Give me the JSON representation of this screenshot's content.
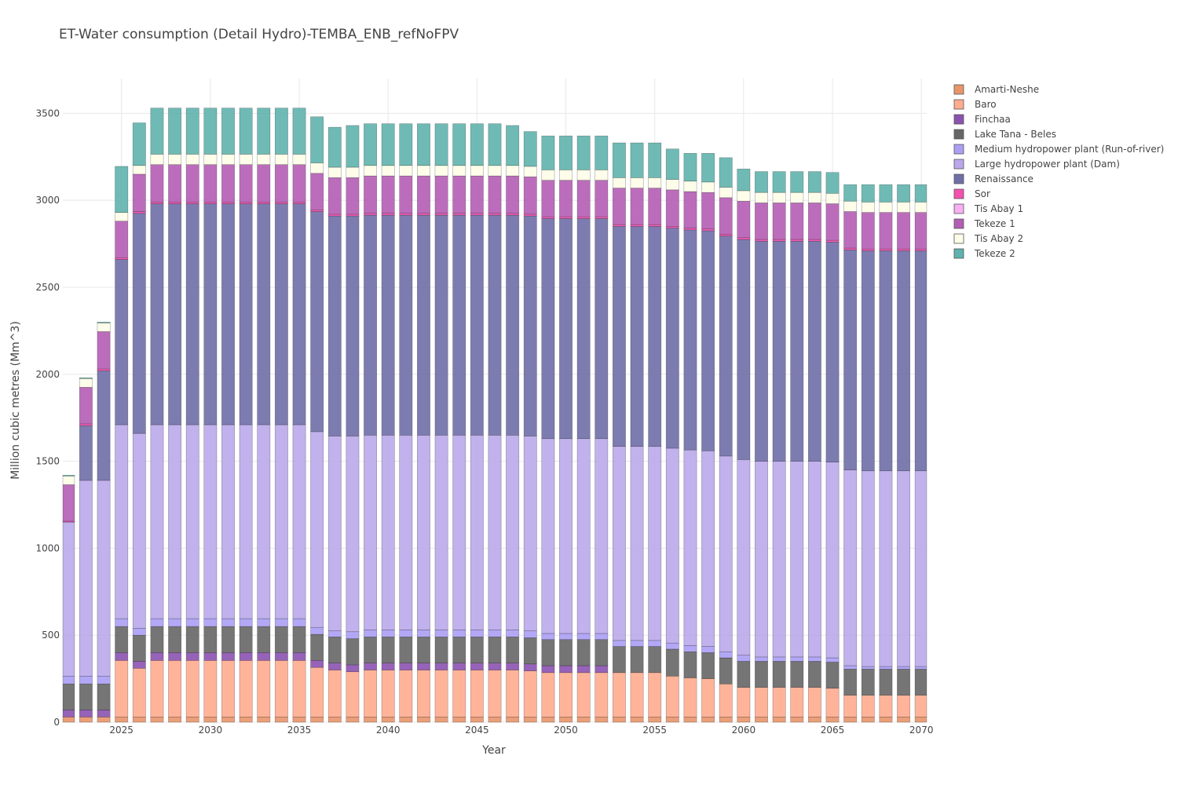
{
  "chart_data": {
    "type": "bar",
    "barmode": "stack",
    "title": "ET-Water consumption (Detail Hydro)-TEMBA_ENB_refNoFPV",
    "xlabel": "Year",
    "ylabel": "Million cubic metres (Mm^3)",
    "xlim": [
      2021.7,
      2070.3
    ],
    "ylim": [
      0,
      3700
    ],
    "x_ticks": [
      2025,
      2030,
      2035,
      2040,
      2045,
      2050,
      2055,
      2060,
      2065,
      2070
    ],
    "y_ticks": [
      0,
      500,
      1000,
      1500,
      2000,
      2500,
      3000,
      3500
    ],
    "grid": true,
    "legend_position": "right",
    "x": [
      2022,
      2023,
      2024,
      2025,
      2026,
      2027,
      2028,
      2029,
      2030,
      2031,
      2032,
      2033,
      2034,
      2035,
      2036,
      2037,
      2038,
      2039,
      2040,
      2041,
      2042,
      2043,
      2044,
      2045,
      2046,
      2047,
      2048,
      2049,
      2050,
      2051,
      2052,
      2053,
      2054,
      2055,
      2056,
      2057,
      2058,
      2059,
      2060,
      2061,
      2062,
      2063,
      2064,
      2065,
      2066,
      2067,
      2068,
      2069,
      2070
    ],
    "series": [
      {
        "name": "Amarti-Neshe",
        "color": "#e8956a",
        "values": [
          30,
          30,
          30,
          30,
          30,
          30,
          30,
          30,
          30,
          30,
          30,
          30,
          30,
          30,
          30,
          30,
          30,
          30,
          30,
          30,
          30,
          30,
          30,
          30,
          30,
          30,
          30,
          30,
          30,
          30,
          30,
          30,
          30,
          30,
          30,
          30,
          30,
          30,
          30,
          30,
          30,
          30,
          30,
          30,
          30,
          30,
          30,
          30,
          30
        ]
      },
      {
        "name": "Baro",
        "color": "#ffac8f",
        "values": [
          0,
          0,
          0,
          325,
          280,
          325,
          325,
          325,
          325,
          325,
          325,
          325,
          325,
          325,
          285,
          270,
          260,
          270,
          270,
          270,
          270,
          270,
          270,
          270,
          270,
          270,
          265,
          255,
          255,
          255,
          255,
          255,
          255,
          255,
          235,
          225,
          220,
          190,
          170,
          170,
          170,
          170,
          170,
          165,
          125,
          125,
          125,
          125,
          125
        ]
      },
      {
        "name": "Finchaa",
        "color": "#8b52b0",
        "values": [
          40,
          40,
          40,
          45,
          40,
          45,
          45,
          45,
          45,
          45,
          45,
          45,
          45,
          45,
          40,
          40,
          40,
          40,
          40,
          40,
          40,
          40,
          40,
          40,
          40,
          40,
          40,
          40,
          40,
          40,
          40,
          0,
          0,
          0,
          0,
          0,
          0,
          0,
          0,
          0,
          0,
          0,
          0,
          0,
          0,
          0,
          0,
          0,
          0
        ]
      },
      {
        "name": "Lake Tana - Beles",
        "color": "#666666",
        "values": [
          150,
          150,
          150,
          150,
          150,
          150,
          150,
          150,
          150,
          150,
          150,
          150,
          150,
          150,
          150,
          150,
          150,
          150,
          150,
          150,
          150,
          150,
          150,
          150,
          150,
          150,
          150,
          150,
          150,
          150,
          150,
          150,
          150,
          150,
          155,
          150,
          150,
          150,
          150,
          150,
          150,
          150,
          150,
          150,
          150,
          150,
          150,
          150,
          150
        ]
      },
      {
        "name": "Medium hydropower plant (Run-of-river)",
        "color": "#ab9ff5",
        "values": [
          45,
          45,
          45,
          45,
          40,
          45,
          45,
          45,
          45,
          45,
          45,
          45,
          45,
          45,
          40,
          35,
          40,
          40,
          40,
          40,
          40,
          40,
          40,
          40,
          40,
          40,
          40,
          35,
          35,
          35,
          35,
          35,
          35,
          35,
          35,
          35,
          35,
          35,
          35,
          25,
          25,
          25,
          25,
          25,
          20,
          15,
          15,
          15,
          15
        ]
      },
      {
        "name": "Large hydropower plant (Dam)",
        "color": "#baa8ea",
        "values": [
          885,
          1125,
          1125,
          1115,
          1120,
          1115,
          1115,
          1115,
          1115,
          1115,
          1115,
          1115,
          1115,
          1115,
          1125,
          1120,
          1125,
          1120,
          1120,
          1120,
          1120,
          1120,
          1120,
          1120,
          1120,
          1120,
          1120,
          1120,
          1120,
          1120,
          1120,
          1115,
          1115,
          1115,
          1120,
          1125,
          1125,
          1125,
          1125,
          1125,
          1125,
          1125,
          1125,
          1125,
          1125,
          1125,
          1125,
          1125,
          1125
        ]
      },
      {
        "name": "Renaissance",
        "color": "#6f6ea7",
        "values": [
          0,
          315,
          630,
          950,
          1265,
          1270,
          1270,
          1270,
          1270,
          1270,
          1270,
          1270,
          1270,
          1270,
          1265,
          1265,
          1265,
          1265,
          1265,
          1265,
          1265,
          1265,
          1265,
          1265,
          1265,
          1265,
          1265,
          1265,
          1265,
          1265,
          1265,
          1265,
          1265,
          1265,
          1265,
          1265,
          1265,
          1265,
          1265,
          1265,
          1265,
          1265,
          1265,
          1265,
          1265,
          1265,
          1265,
          1265,
          1265
        ]
      },
      {
        "name": "Sor",
        "color": "#f54fb0",
        "values": [
          5,
          10,
          10,
          10,
          10,
          10,
          10,
          10,
          10,
          10,
          10,
          10,
          10,
          10,
          10,
          10,
          10,
          10,
          10,
          10,
          10,
          10,
          10,
          10,
          10,
          10,
          10,
          10,
          10,
          10,
          10,
          10,
          10,
          10,
          10,
          10,
          10,
          10,
          10,
          10,
          10,
          10,
          10,
          10,
          10,
          10,
          10,
          10,
          10
        ]
      },
      {
        "name": "Tis Abay 1",
        "color": "#f7b0f4",
        "values": [
          0,
          0,
          0,
          0,
          0,
          0,
          0,
          0,
          0,
          0,
          0,
          0,
          0,
          0,
          0,
          0,
          0,
          0,
          0,
          0,
          0,
          0,
          0,
          0,
          0,
          0,
          0,
          0,
          0,
          0,
          0,
          0,
          0,
          0,
          0,
          0,
          0,
          0,
          0,
          0,
          0,
          0,
          0,
          0,
          0,
          0,
          0,
          0,
          0
        ]
      },
      {
        "name": "Tekeze 1",
        "color": "#b45db5",
        "values": [
          210,
          210,
          215,
          210,
          215,
          215,
          215,
          215,
          215,
          215,
          215,
          215,
          215,
          215,
          210,
          210,
          210,
          215,
          215,
          215,
          215,
          215,
          215,
          215,
          215,
          215,
          215,
          210,
          210,
          210,
          210,
          210,
          210,
          210,
          210,
          210,
          210,
          210,
          210,
          210,
          210,
          210,
          210,
          210,
          210,
          210,
          210,
          210,
          210
        ]
      },
      {
        "name": "Tis Abay 2",
        "color": "#fdfde8",
        "values": [
          50,
          50,
          50,
          50,
          50,
          60,
          60,
          60,
          60,
          60,
          60,
          60,
          60,
          60,
          60,
          60,
          60,
          60,
          60,
          60,
          60,
          60,
          60,
          60,
          60,
          60,
          60,
          60,
          60,
          60,
          60,
          60,
          60,
          60,
          60,
          60,
          60,
          60,
          60,
          60,
          60,
          60,
          60,
          60,
          60,
          60,
          60,
          60,
          60
        ]
      },
      {
        "name": "Tekeze 2",
        "color": "#5fb2ad",
        "values": [
          5,
          5,
          5,
          265,
          245,
          265,
          265,
          265,
          265,
          265,
          265,
          265,
          265,
          265,
          265,
          230,
          240,
          240,
          240,
          240,
          240,
          240,
          240,
          240,
          240,
          230,
          200,
          195,
          195,
          195,
          195,
          200,
          200,
          200,
          175,
          160,
          165,
          170,
          125,
          120,
          120,
          120,
          120,
          120,
          95,
          100,
          100,
          100,
          100
        ]
      }
    ]
  }
}
